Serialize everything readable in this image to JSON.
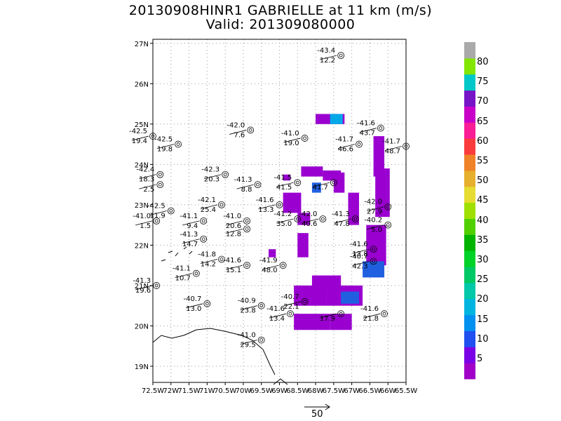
{
  "title": {
    "line1": "20130908HINR1 GABRIELLE at 11 km (m/s)",
    "line2": "Valid: 201309080000"
  },
  "map": {
    "lat_labels": [
      "19N",
      "20N",
      "21N",
      "22N",
      "23N",
      "24N",
      "25N",
      "26N",
      "27N"
    ],
    "lon_labels": [
      "72.5W",
      "72W",
      "71.5W",
      "71W",
      "70.5W",
      "70W",
      "69.5W",
      "69W",
      "68.5W",
      "68W",
      "67.5W",
      "67W",
      "66.5W",
      "66W",
      "65.5W"
    ],
    "lat_range": [
      18.6,
      27.1
    ],
    "lon_range": [
      -72.5,
      -65.5
    ],
    "grid": true,
    "radar_cells": [
      {
        "lon": -68.0,
        "lat": 25.0,
        "w": 0.8,
        "h": 0.25,
        "color": "#9a00d0"
      },
      {
        "lon": -67.6,
        "lat": 25.0,
        "w": 0.35,
        "h": 0.25,
        "color": "#00a8e8"
      },
      {
        "lon": -68.9,
        "lat": 23.6,
        "w": 0.2,
        "h": 0.15,
        "color": "#9a00d0"
      },
      {
        "lon": -68.4,
        "lat": 23.7,
        "w": 0.6,
        "h": 0.25,
        "color": "#9a00d0"
      },
      {
        "lon": -67.8,
        "lat": 23.6,
        "w": 0.5,
        "h": 0.25,
        "color": "#9a00d0"
      },
      {
        "lon": -67.5,
        "lat": 23.3,
        "w": 0.3,
        "h": 0.5,
        "color": "#9a00d0"
      },
      {
        "lon": -66.4,
        "lat": 23.7,
        "w": 0.3,
        "h": 1.0,
        "color": "#9a00d0"
      },
      {
        "lon": -66.35,
        "lat": 22.7,
        "w": 0.4,
        "h": 1.2,
        "color": "#9a00d0"
      },
      {
        "lon": -66.6,
        "lat": 21.5,
        "w": 0.55,
        "h": 1.0,
        "color": "#9a00d0"
      },
      {
        "lon": -66.7,
        "lat": 21.2,
        "w": 0.6,
        "h": 0.4,
        "color": "#2060e0"
      },
      {
        "lon": -67.1,
        "lat": 22.5,
        "w": 0.3,
        "h": 0.8,
        "color": "#9a00d0"
      },
      {
        "lon": -68.9,
        "lat": 22.8,
        "w": 0.5,
        "h": 0.5,
        "color": "#9a00d0"
      },
      {
        "lon": -68.5,
        "lat": 22.5,
        "w": 0.35,
        "h": 0.3,
        "color": "#9a00d0"
      },
      {
        "lon": -68.5,
        "lat": 21.7,
        "w": 0.3,
        "h": 0.6,
        "color": "#9a00d0"
      },
      {
        "lon": -68.1,
        "lat": 20.9,
        "w": 0.8,
        "h": 0.35,
        "color": "#9a00d0"
      },
      {
        "lon": -68.6,
        "lat": 20.5,
        "w": 0.9,
        "h": 0.5,
        "color": "#9a00d0"
      },
      {
        "lon": -67.7,
        "lat": 20.5,
        "w": 1.0,
        "h": 0.5,
        "color": "#9a00d0"
      },
      {
        "lon": -67.3,
        "lat": 20.55,
        "w": 0.5,
        "h": 0.3,
        "color": "#2060e0"
      },
      {
        "lon": -68.6,
        "lat": 19.9,
        "w": 1.0,
        "h": 0.4,
        "color": "#9a00d0"
      },
      {
        "lon": -67.6,
        "lat": 19.9,
        "w": 0.6,
        "h": 0.4,
        "color": "#9a00d0"
      },
      {
        "lon": -69.3,
        "lat": 21.7,
        "w": 0.2,
        "h": 0.2,
        "color": "#9a00d0"
      },
      {
        "lon": -68.1,
        "lat": 23.3,
        "w": 0.25,
        "h": 0.25,
        "color": "#2060e0"
      }
    ],
    "stations": [
      {
        "lon": -67.3,
        "lat": 26.7,
        "t": "-43.4",
        "s": "12.2"
      },
      {
        "lon": -69.8,
        "lat": 24.85,
        "t": "-42.0",
        "s": "7.6"
      },
      {
        "lon": -71.8,
        "lat": 24.5,
        "t": "-42.5",
        "s": "19.8"
      },
      {
        "lon": -72.5,
        "lat": 24.7,
        "t": "-42.5",
        "s": "19.4"
      },
      {
        "lon": -68.3,
        "lat": 24.65,
        "t": "-41.0",
        "s": "19.0"
      },
      {
        "lon": -66.2,
        "lat": 24.9,
        "t": "-41.6",
        "s": "43.7"
      },
      {
        "lon": -66.8,
        "lat": 24.5,
        "t": "-41.7",
        "s": "46.6"
      },
      {
        "lon": -65.5,
        "lat": 24.45,
        "t": "-41.7",
        "s": "48.7"
      },
      {
        "lon": -72.3,
        "lat": 23.75,
        "t": "-42.4",
        "s": "18.3"
      },
      {
        "lon": -72.3,
        "lat": 23.5,
        "t": "",
        "s": "2.5"
      },
      {
        "lon": -70.5,
        "lat": 23.75,
        "t": "-42.3",
        "s": "20.3"
      },
      {
        "lon": -69.6,
        "lat": 23.5,
        "t": "-41.3",
        "s": "8.8"
      },
      {
        "lon": -68.5,
        "lat": 23.55,
        "t": "-41.5",
        "s": "41.5"
      },
      {
        "lon": -67.5,
        "lat": 23.55,
        "t": "",
        "s": "41.7"
      },
      {
        "lon": -70.6,
        "lat": 23.0,
        "t": "-42.1",
        "s": "25.4"
      },
      {
        "lon": -69.0,
        "lat": 23.0,
        "t": "-41.6",
        "s": "13.3"
      },
      {
        "lon": -72.0,
        "lat": 22.85,
        "t": "-42.5",
        "s": "11.9"
      },
      {
        "lon": -71.1,
        "lat": 22.6,
        "t": "-41.1",
        "s": "9.4"
      },
      {
        "lon": -72.4,
        "lat": 22.6,
        "t": "-41.0",
        "s": "1.5"
      },
      {
        "lon": -69.9,
        "lat": 22.6,
        "t": "-41.0",
        "s": "20.6"
      },
      {
        "lon": -68.5,
        "lat": 22.65,
        "t": "-41.2",
        "s": "35.0"
      },
      {
        "lon": -67.8,
        "lat": 22.65,
        "t": "-42.0",
        "s": "40.6"
      },
      {
        "lon": -66.9,
        "lat": 22.65,
        "t": "-41.3",
        "s": "47.8"
      },
      {
        "lon": -66.0,
        "lat": 22.5,
        "t": "-40.2",
        "s": "5.0"
      },
      {
        "lon": -66.0,
        "lat": 22.95,
        "t": "-42.0",
        "s": "27.9"
      },
      {
        "lon": -69.9,
        "lat": 22.4,
        "t": "",
        "s": "12.8"
      },
      {
        "lon": -71.1,
        "lat": 22.15,
        "t": "-41.3",
        "s": "14.7"
      },
      {
        "lon": -70.6,
        "lat": 21.65,
        "t": "-41.8",
        "s": "14.2"
      },
      {
        "lon": -71.3,
        "lat": 21.3,
        "t": "-41.1",
        "s": "10.7"
      },
      {
        "lon": -69.9,
        "lat": 21.5,
        "t": "-41.6",
        "s": "15.1"
      },
      {
        "lon": -68.9,
        "lat": 21.5,
        "t": "-41.9",
        "s": "48.0"
      },
      {
        "lon": -66.4,
        "lat": 21.9,
        "t": "-41.6",
        "s": "13.8"
      },
      {
        "lon": -66.4,
        "lat": 21.6,
        "t": "-40.7",
        "s": "42.3"
      },
      {
        "lon": -72.4,
        "lat": 21.0,
        "t": "-41.3",
        "s": "19.6"
      },
      {
        "lon": -71.0,
        "lat": 20.55,
        "t": "-40.7",
        "s": "13.0"
      },
      {
        "lon": -69.5,
        "lat": 20.5,
        "t": "-40.9",
        "s": "23.8"
      },
      {
        "lon": -68.7,
        "lat": 20.3,
        "t": "-41.6",
        "s": "13.4"
      },
      {
        "lon": -68.3,
        "lat": 20.6,
        "t": "-40.7",
        "s": "22.1"
      },
      {
        "lon": -67.3,
        "lat": 20.3,
        "t": "",
        "s": "17.9"
      },
      {
        "lon": -66.1,
        "lat": 20.3,
        "t": "-41.6",
        "s": "21.8"
      },
      {
        "lon": -69.5,
        "lat": 19.65,
        "t": "-41.0",
        "s": "29.5"
      }
    ]
  },
  "colorbar": {
    "colors": [
      "#a000c8",
      "#7a00e6",
      "#2050f0",
      "#0090f0",
      "#00b4e0",
      "#00c8a8",
      "#00c864",
      "#00d228",
      "#00b400",
      "#50d000",
      "#a0e000",
      "#e6dc32",
      "#e6af2d",
      "#f08228",
      "#fa3c3c",
      "#fa1e96",
      "#c800c8",
      "#7814c8",
      "#00c8c8",
      "#82e600",
      "#aaaaaa"
    ],
    "labels": [
      "5",
      "10",
      "15",
      "20",
      "25",
      "30",
      "35",
      "40",
      "45",
      "50",
      "55",
      "60",
      "65",
      "70",
      "75",
      "80"
    ]
  },
  "scale": {
    "label": "50"
  }
}
